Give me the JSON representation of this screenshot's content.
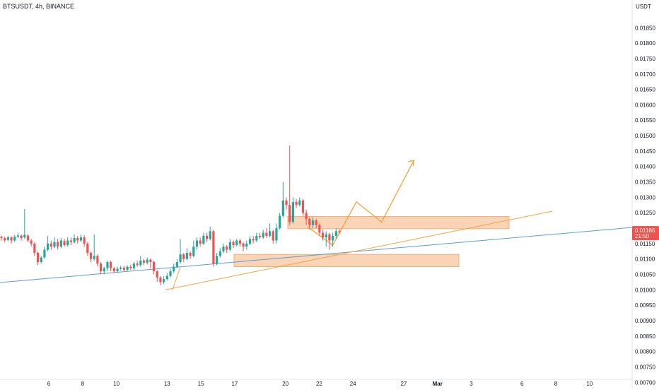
{
  "header": {
    "symbol_line": "BTSUSDT, 4h, BINANCE"
  },
  "colors": {
    "up": "#26a69a",
    "down": "#ef5350",
    "zone_fill": "#f7c59f",
    "zone_stroke": "#f5a15a",
    "orange_line": "#f2a33a",
    "blue_line": "#5b9bd5",
    "price_tag": "#ef5350"
  },
  "chart_data": {
    "type": "candlestick",
    "ylabel": "USDT",
    "ylim": [
      0.0068,
      0.0194
    ],
    "y_ticks": [
      "0.01850",
      "0.01800",
      "0.01750",
      "0.01700",
      "0.01650",
      "0.01600",
      "0.01550",
      "0.01500",
      "0.01450",
      "0.01400",
      "0.01350",
      "0.01300",
      "0.01250",
      "0.01200",
      "0.01150",
      "0.01100",
      "0.01050",
      "0.01000",
      "0.00950",
      "0.00900",
      "0.00850",
      "0.00800",
      "0.00750",
      "0.00700"
    ],
    "x_ticks": [
      {
        "label": "6",
        "day": 6
      },
      {
        "label": "8",
        "day": 8
      },
      {
        "label": "10",
        "day": 10
      },
      {
        "label": "13",
        "day": 13
      },
      {
        "label": "15",
        "day": 15
      },
      {
        "label": "17",
        "day": 17
      },
      {
        "label": "20",
        "day": 20
      },
      {
        "label": "22",
        "day": 22
      },
      {
        "label": "24",
        "day": 24
      },
      {
        "label": "27",
        "day": 27
      },
      {
        "label": "Mar",
        "day": 29
      },
      {
        "label": "3",
        "day": 31
      },
      {
        "label": "6",
        "day": 34
      },
      {
        "label": "8",
        "day": 36
      },
      {
        "label": "10",
        "day": 38
      }
    ],
    "current_price": {
      "value": "0.01186",
      "countdown": "21:50",
      "price": 0.01186
    },
    "candles": [
      [
        0.01172,
        0.01168,
        0.01176,
        0.0116
      ],
      [
        0.01168,
        0.0116,
        0.01172,
        0.01155
      ],
      [
        0.01162,
        0.0117,
        0.01175,
        0.01158
      ],
      [
        0.0117,
        0.0116,
        0.01174,
        0.0115
      ],
      [
        0.0116,
        0.01172,
        0.01178,
        0.01155
      ],
      [
        0.01172,
        0.01176,
        0.01185,
        0.01168
      ],
      [
        0.01176,
        0.01168,
        0.0118,
        0.0116
      ],
      [
        0.0117,
        0.01178,
        0.01262,
        0.01165
      ],
      [
        0.01176,
        0.0116,
        0.0118,
        0.01155
      ],
      [
        0.0116,
        0.0115,
        0.01165,
        0.0114
      ],
      [
        0.0115,
        0.0112,
        0.01155,
        0.0111
      ],
      [
        0.0112,
        0.0109,
        0.01125,
        0.0108
      ],
      [
        0.0109,
        0.01105,
        0.0111,
        0.01085
      ],
      [
        0.01105,
        0.0113,
        0.0114,
        0.011
      ],
      [
        0.0113,
        0.0115,
        0.01175,
        0.01125
      ],
      [
        0.0115,
        0.0114,
        0.0116,
        0.0113
      ],
      [
        0.0114,
        0.01155,
        0.0117,
        0.01135
      ],
      [
        0.01155,
        0.0114,
        0.01165,
        0.0113
      ],
      [
        0.0114,
        0.0116,
        0.01168,
        0.01135
      ],
      [
        0.01158,
        0.01145,
        0.01165,
        0.0114
      ],
      [
        0.01145,
        0.0116,
        0.0117,
        0.0114
      ],
      [
        0.0116,
        0.01155,
        0.0117,
        0.01145
      ],
      [
        0.01155,
        0.01168,
        0.0118,
        0.0115
      ],
      [
        0.01168,
        0.0116,
        0.01175,
        0.0115
      ],
      [
        0.0116,
        0.0117,
        0.0118,
        0.01155
      ],
      [
        0.0117,
        0.0115,
        0.01178,
        0.0114
      ],
      [
        0.0115,
        0.0112,
        0.01155,
        0.0111
      ],
      [
        0.0112,
        0.011,
        0.01125,
        0.0109
      ],
      [
        0.011,
        0.0111,
        0.0118,
        0.01095
      ],
      [
        0.0111,
        0.01085,
        0.01115,
        0.01075
      ],
      [
        0.01085,
        0.0106,
        0.0109,
        0.0105
      ],
      [
        0.0106,
        0.0107,
        0.01075,
        0.0105
      ],
      [
        0.0107,
        0.0109,
        0.01095,
        0.0106
      ],
      [
        0.0109,
        0.0107,
        0.01095,
        0.0106
      ],
      [
        0.0107,
        0.0106,
        0.01075,
        0.01055
      ],
      [
        0.0106,
        0.01068,
        0.01075,
        0.01055
      ],
      [
        0.01068,
        0.01072,
        0.01078,
        0.01062
      ],
      [
        0.01072,
        0.01065,
        0.01078,
        0.0106
      ],
      [
        0.01065,
        0.01075,
        0.0108,
        0.0106
      ],
      [
        0.01075,
        0.0107,
        0.01082,
        0.01065
      ],
      [
        0.0107,
        0.01085,
        0.0109,
        0.01065
      ],
      [
        0.01085,
        0.0108,
        0.01095,
        0.01075
      ],
      [
        0.0108,
        0.01095,
        0.0111,
        0.01075
      ],
      [
        0.01095,
        0.01088,
        0.011,
        0.0108
      ],
      [
        0.01088,
        0.01098,
        0.01105,
        0.01082
      ],
      [
        0.01098,
        0.0109,
        0.01102,
        0.0107
      ],
      [
        0.0109,
        0.0106,
        0.01095,
        0.0105
      ],
      [
        0.0106,
        0.0104,
        0.01065,
        0.01025
      ],
      [
        0.0104,
        0.01025,
        0.01045,
        0.01015
      ],
      [
        0.01025,
        0.01035,
        0.01045,
        0.01018
      ],
      [
        0.01035,
        0.01045,
        0.01055,
        0.0103
      ],
      [
        0.01045,
        0.0106,
        0.01068,
        0.0104
      ],
      [
        0.0106,
        0.01075,
        0.01085,
        0.01055
      ],
      [
        0.01075,
        0.0109,
        0.011,
        0.0107
      ],
      [
        0.0109,
        0.01115,
        0.01165,
        0.01085
      ],
      [
        0.01115,
        0.011,
        0.0112,
        0.0109
      ],
      [
        0.011,
        0.0112,
        0.01135,
        0.01095
      ],
      [
        0.0112,
        0.0111,
        0.01125,
        0.011
      ],
      [
        0.0111,
        0.0114,
        0.0116,
        0.01105
      ],
      [
        0.0114,
        0.0116,
        0.0117,
        0.0113
      ],
      [
        0.0116,
        0.0115,
        0.0117,
        0.0114
      ],
      [
        0.0115,
        0.01175,
        0.01185,
        0.01145
      ],
      [
        0.01175,
        0.01165,
        0.01185,
        0.01155
      ],
      [
        0.01165,
        0.0119,
        0.01205,
        0.0116
      ],
      [
        0.0119,
        0.01085,
        0.01195,
        0.01075
      ],
      [
        0.01085,
        0.0111,
        0.0112,
        0.0108
      ],
      [
        0.0111,
        0.01125,
        0.01135,
        0.01105
      ],
      [
        0.01125,
        0.0114,
        0.0115,
        0.0112
      ],
      [
        0.0114,
        0.0113,
        0.01145,
        0.0112
      ],
      [
        0.0113,
        0.01155,
        0.01165,
        0.01125
      ],
      [
        0.01155,
        0.01145,
        0.0116,
        0.01135
      ],
      [
        0.01145,
        0.0116,
        0.01165,
        0.0114
      ],
      [
        0.0116,
        0.0115,
        0.01165,
        0.0114
      ],
      [
        0.0115,
        0.0114,
        0.01155,
        0.01125
      ],
      [
        0.0114,
        0.0115,
        0.0116,
        0.0113
      ],
      [
        0.0115,
        0.01165,
        0.01175,
        0.01145
      ],
      [
        0.01165,
        0.0116,
        0.01175,
        0.0115
      ],
      [
        0.0116,
        0.01175,
        0.01185,
        0.01155
      ],
      [
        0.01175,
        0.0117,
        0.01185,
        0.01165
      ],
      [
        0.0117,
        0.01185,
        0.01195,
        0.01165
      ],
      [
        0.01185,
        0.01175,
        0.012,
        0.01168
      ],
      [
        0.01175,
        0.0119,
        0.01215,
        0.0117
      ],
      [
        0.0119,
        0.0116,
        0.01195,
        0.0115
      ],
      [
        0.0116,
        0.012,
        0.01215,
        0.0115
      ],
      [
        0.012,
        0.0124,
        0.0125,
        0.01195
      ],
      [
        0.0124,
        0.0129,
        0.0135,
        0.01235
      ],
      [
        0.0129,
        0.01275,
        0.013,
        0.0126
      ],
      [
        0.01275,
        0.0122,
        0.01468,
        0.0121
      ],
      [
        0.0122,
        0.01285,
        0.013,
        0.01215
      ],
      [
        0.01285,
        0.01275,
        0.01295,
        0.01265
      ],
      [
        0.01275,
        0.0129,
        0.013,
        0.0127
      ],
      [
        0.0129,
        0.0125,
        0.01295,
        0.0124
      ],
      [
        0.0125,
        0.0123,
        0.0126,
        0.0121
      ],
      [
        0.0123,
        0.0121,
        0.01235,
        0.01195
      ],
      [
        0.0121,
        0.01225,
        0.01235,
        0.012
      ],
      [
        0.01225,
        0.0121,
        0.0123,
        0.012
      ],
      [
        0.0121,
        0.01185,
        0.01215,
        0.01175
      ],
      [
        0.01185,
        0.0117,
        0.01195,
        0.0116
      ],
      [
        0.0117,
        0.0118,
        0.0119,
        0.0114
      ],
      [
        0.0118,
        0.0116,
        0.01185,
        0.0113
      ],
      [
        0.0116,
        0.01175,
        0.01185,
        0.0114
      ],
      [
        0.01175,
        0.0119,
        0.012,
        0.01165
      ],
      [
        0.0119,
        0.01186,
        0.01198,
        0.0118
      ]
    ],
    "zones": [
      {
        "from": "day 20",
        "to": "day 39",
        "top": 0.01238,
        "bottom": 0.01198
      },
      {
        "from": "day 17",
        "to": "day 31",
        "top": 0.01115,
        "bottom": 0.01075
      }
    ],
    "trendlines": [
      {
        "kind": "support",
        "from": [
          12.9,
          0.01
        ],
        "to": [
          35.8,
          0.01255
        ]
      },
      {
        "kind": "long",
        "from": [
          2.5,
          0.00982
        ],
        "to": [
          39.2,
          0.0116
        ]
      }
    ],
    "projection": [
      [
        21.3,
        0.01205
      ],
      [
        22.8,
        0.01145
      ],
      [
        24.2,
        0.01285
      ],
      [
        25.7,
        0.0122
      ],
      [
        27.6,
        0.0142
      ]
    ]
  }
}
